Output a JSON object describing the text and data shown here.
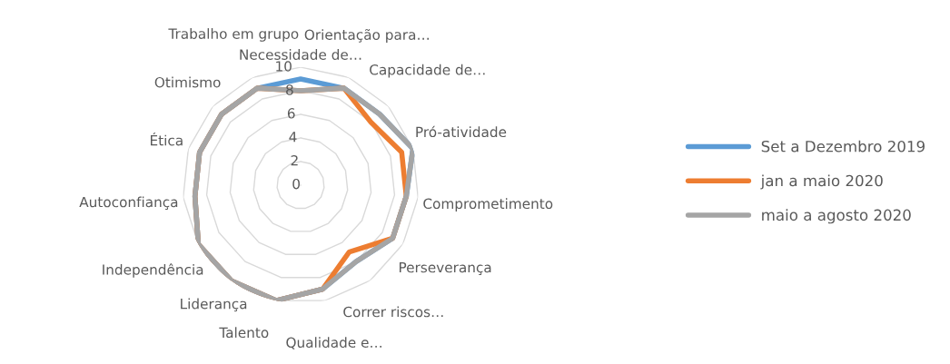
{
  "chart_data": {
    "type": "radar",
    "categories": [
      "Necessidade de…",
      "Orientação para…",
      "Capacidade de…",
      "Pró-atividade",
      "Comprometimento",
      "Perseverança",
      "Correr riscos…",
      "Qualidade e…",
      "Talento",
      "Liderança",
      "Independência",
      "Autoconfiança",
      "Ética",
      "Otimismo",
      "Trabalho em grupo"
    ],
    "series": [
      {
        "name": "Set a Dezembro 2019",
        "color": "#5b9bd5",
        "values": [
          9,
          9,
          9,
          10,
          9,
          9,
          8,
          9,
          10,
          10,
          10,
          9,
          9,
          9,
          9
        ]
      },
      {
        "name": "jan a maio 2020",
        "color": "#ed7d31",
        "values": [
          8,
          9,
          8,
          9,
          9,
          9,
          7,
          9,
          10,
          10,
          10,
          9,
          9,
          9,
          9
        ]
      },
      {
        "name": "maio a agosto 2020",
        "color": "#a5a5a5",
        "values": [
          8,
          9,
          9,
          10,
          9,
          9,
          8,
          9,
          10,
          10,
          10,
          9,
          9,
          9,
          9
        ]
      }
    ],
    "ylim": [
      0,
      10
    ],
    "yticks": [
      0,
      2,
      4,
      6,
      8,
      10
    ],
    "grid": true,
    "legend": "right",
    "marker": "none",
    "line_style": "solid"
  }
}
